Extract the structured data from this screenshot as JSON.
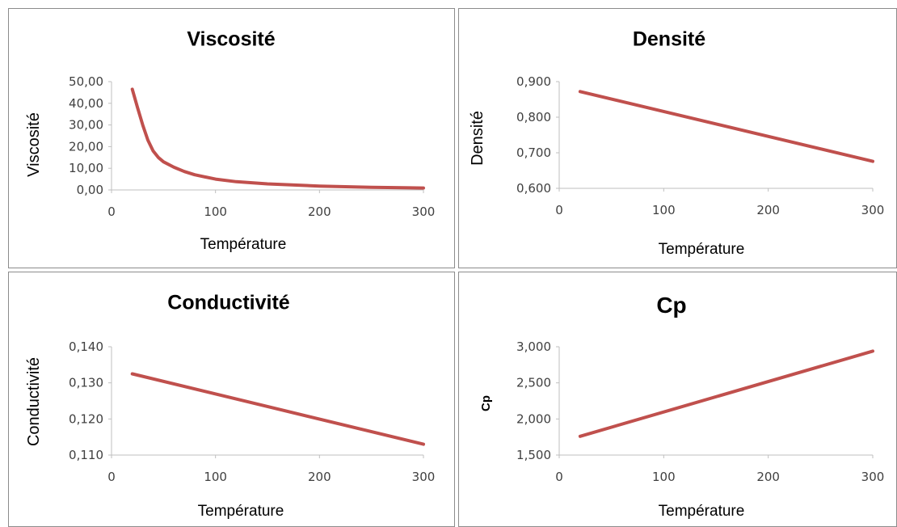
{
  "chart_data": [
    {
      "type": "line",
      "title": "Viscosité",
      "xlabel": "Température",
      "ylabel": "Viscosité",
      "xlim": [
        0,
        300
      ],
      "ylim": [
        0,
        50
      ],
      "x_ticks": [
        "0",
        "100",
        "200",
        "300"
      ],
      "y_ticks": [
        "0,00",
        "10,00",
        "20,00",
        "30,00",
        "40,00",
        "50,00"
      ],
      "series": [
        {
          "x": [
            20,
            25,
            30,
            35,
            40,
            45,
            50,
            60,
            70,
            80,
            100,
            120,
            150,
            200,
            250,
            300
          ],
          "y": [
            46.5,
            38.0,
            30.0,
            23.0,
            18.0,
            15.0,
            13.0,
            10.5,
            8.5,
            7.0,
            5.0,
            3.8,
            2.8,
            1.8,
            1.2,
            0.9
          ]
        }
      ],
      "line_color": "#c0504d",
      "grid": false
    },
    {
      "type": "line",
      "title": "Densité",
      "xlabel": "Température",
      "ylabel": "Densité",
      "xlim": [
        0,
        300
      ],
      "ylim": [
        0.6,
        0.9
      ],
      "x_ticks": [
        "0",
        "100",
        "200",
        "300"
      ],
      "y_ticks": [
        "0,600",
        "0,700",
        "0,800",
        "0,900"
      ],
      "series": [
        {
          "x": [
            20,
            300
          ],
          "y": [
            0.872,
            0.676
          ]
        }
      ],
      "line_color": "#c0504d",
      "grid": false
    },
    {
      "type": "line",
      "title": "Conductivité",
      "xlabel": "Température",
      "ylabel": "Conductivité",
      "xlim": [
        0,
        300
      ],
      "ylim": [
        0.11,
        0.14
      ],
      "x_ticks": [
        "0",
        "100",
        "200",
        "300"
      ],
      "y_ticks": [
        "0,110",
        "0,120",
        "0,130",
        "0,140"
      ],
      "series": [
        {
          "x": [
            20,
            300
          ],
          "y": [
            0.1325,
            0.113
          ]
        }
      ],
      "line_color": "#c0504d",
      "grid": false
    },
    {
      "type": "line",
      "title": "Cp",
      "xlabel": "Température",
      "ylabel": "Cp",
      "xlim": [
        0,
        300
      ],
      "ylim": [
        1.5,
        3.0
      ],
      "x_ticks": [
        "0",
        "100",
        "200",
        "300"
      ],
      "y_ticks": [
        "1,500",
        "2,000",
        "2,500",
        "3,000"
      ],
      "series": [
        {
          "x": [
            20,
            300
          ],
          "y": [
            1.76,
            2.94
          ]
        }
      ],
      "line_color": "#c0504d",
      "grid": false
    }
  ]
}
